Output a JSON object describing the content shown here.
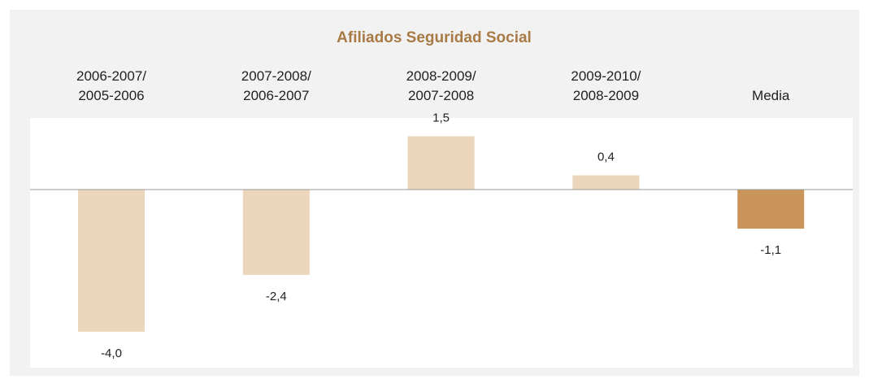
{
  "chart_data": {
    "type": "bar",
    "title": "Afiliados Seguridad Social",
    "categories": [
      "2006-2007/\n2005-2006",
      "2007-2008/\n2006-2007",
      "2008-2009/\n2007-2008",
      "2009-2010/\n2008-2009",
      "Media"
    ],
    "values": [
      -4.0,
      -2.4,
      1.5,
      0.4,
      -1.1
    ],
    "value_labels": [
      "-4,0",
      "-2,4",
      "1,5",
      "0,4",
      "-1,1"
    ],
    "colors": [
      "#ecd6bc",
      "#ecd6bc",
      "#ecd6bc",
      "#ecd6bc",
      "#c9955b"
    ]
  }
}
